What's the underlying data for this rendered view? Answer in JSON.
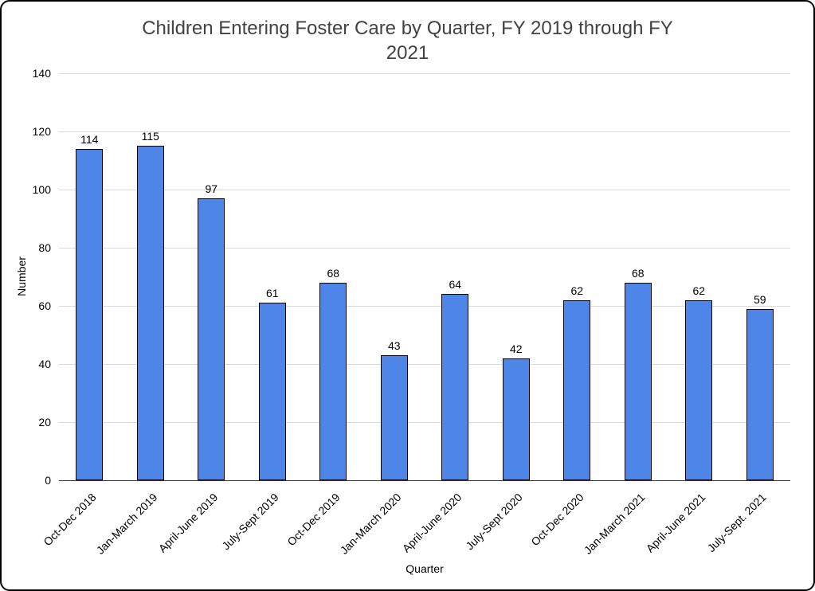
{
  "chart_data": {
    "type": "bar",
    "title": "Children Entering Foster Care by Quarter, FY 2019 through FY 2021",
    "xlabel": "Quarter",
    "ylabel": "Number",
    "categories": [
      "Oct-Dec 2018",
      "Jan-March 2019",
      "April-June 2019",
      "July-Sept 2019",
      "Oct-Dec 2019",
      "Jan-March 2020",
      "April-June 2020",
      "July-Sept 2020",
      "Oct-Dec 2020",
      "Jan-March 2021",
      "April-June 2021",
      "July-Sept. 2021"
    ],
    "values": [
      114,
      115,
      97,
      61,
      68,
      43,
      64,
      42,
      62,
      68,
      62,
      59
    ],
    "ylim": [
      0,
      140
    ],
    "yticks": [
      0,
      20,
      40,
      60,
      80,
      100,
      120,
      140
    ],
    "grid": true,
    "legend": "none"
  },
  "colors": {
    "bar_fill": "#4e86e8",
    "bar_border": "#000000",
    "grid_line": "#d9d9d9",
    "axis_line": "#333333",
    "title_text": "#424242",
    "label_text": "#000000"
  }
}
